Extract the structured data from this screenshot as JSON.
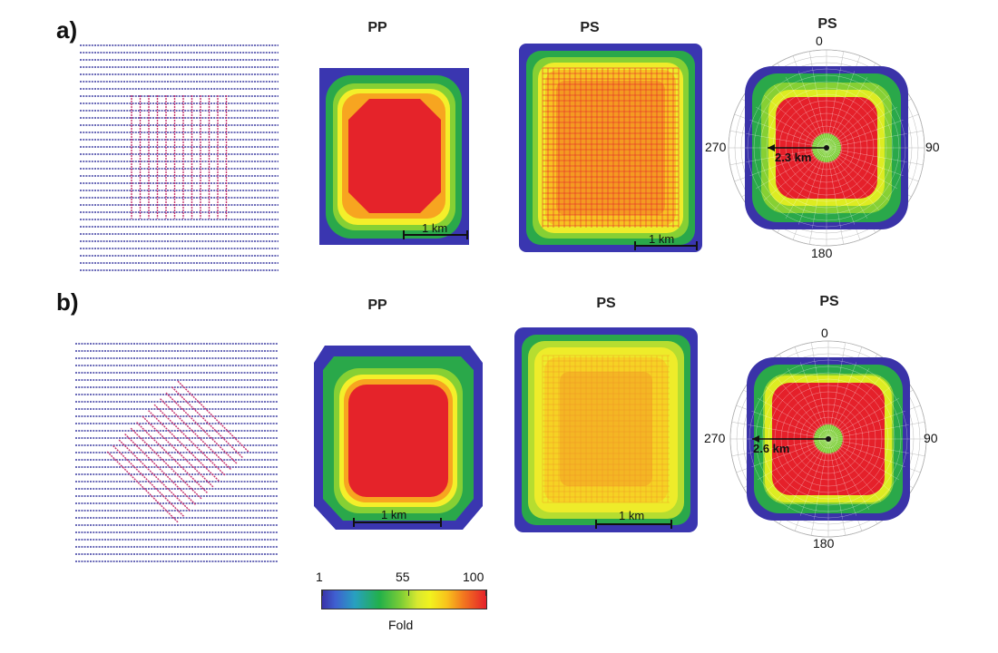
{
  "rows": [
    {
      "panel_label": "a)",
      "titles": {
        "pp": "PP",
        "ps": "PS",
        "ps_polar": "PS"
      },
      "scale_label_pp": "1 km",
      "scale_label_ps": "1 km",
      "polar": {
        "angles": {
          "top": "0",
          "right": "90",
          "bottom": "180",
          "left": "270"
        },
        "radius_label": "2.3 km"
      },
      "layout_type": "orthogonal"
    },
    {
      "panel_label": "b)",
      "titles": {
        "pp": "PP",
        "ps": "PS",
        "ps_polar": "PS"
      },
      "scale_label_pp": "1 km",
      "scale_label_ps": "1 km",
      "polar": {
        "angles": {
          "top": "0",
          "right": "90",
          "bottom": "180",
          "left": "270"
        },
        "radius_label": "2.6 km"
      },
      "layout_type": "rotated-45"
    }
  ],
  "colorbar": {
    "ticks": [
      "1",
      "55",
      "100"
    ],
    "label": "Fold",
    "colors": [
      "#3a33a8",
      "#22b04a",
      "#f2f21e",
      "#e5202a"
    ]
  },
  "colors": {
    "receiver_line": "#3a3aa0",
    "source_line": "#c8336e",
    "fold_low": "#3a33a8",
    "fold_mid": "#22b04a",
    "fold_yellow": "#f2f21e",
    "fold_high": "#e5202a"
  }
}
